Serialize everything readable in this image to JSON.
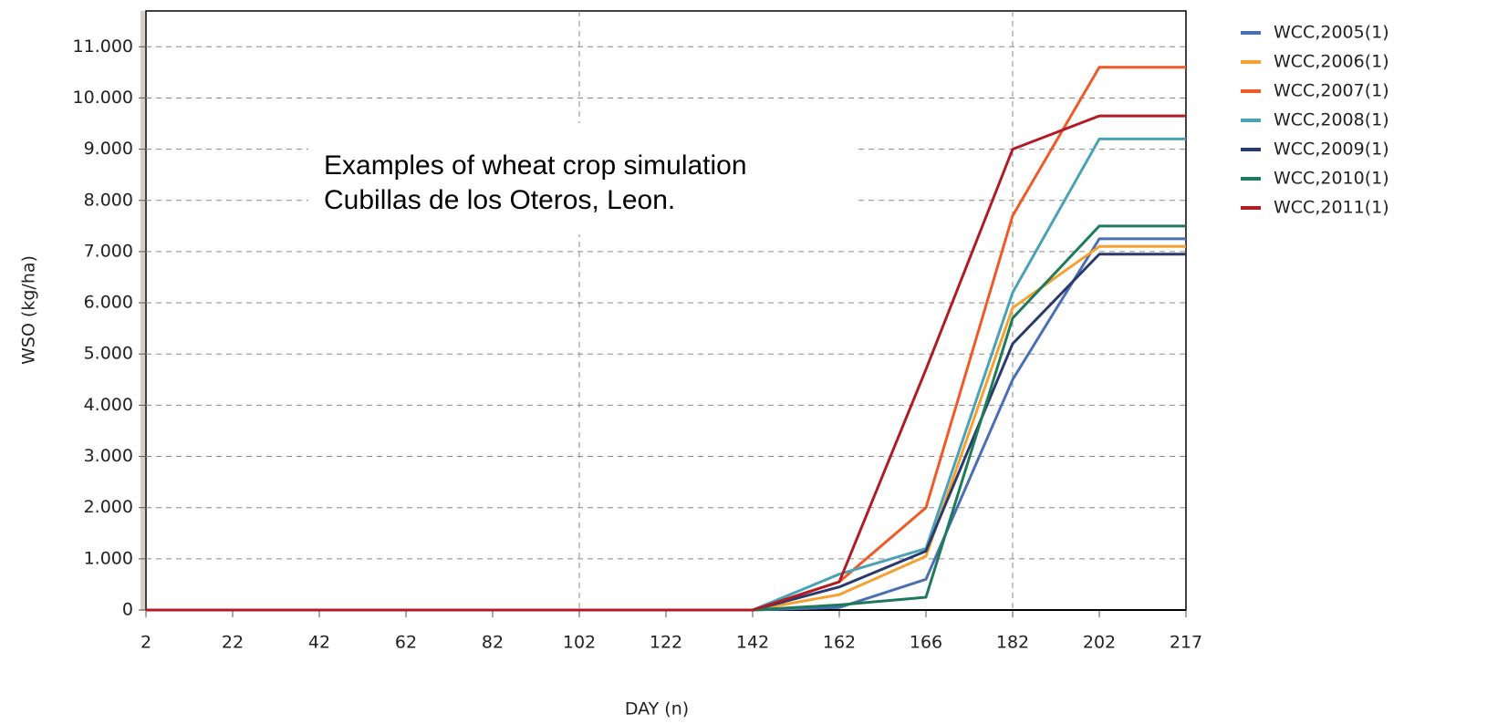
{
  "chart_data": {
    "type": "line",
    "x_label": "DAY (n)",
    "y_label": "WSO (kg/ha)",
    "annotation": [
      "Examples of wheat crop simulation",
      "Cubillas de los Oteros, Leon."
    ],
    "categories": [
      "2",
      "22",
      "42",
      "62",
      "82",
      "102",
      "122",
      "142",
      "162",
      "166",
      "182",
      "202",
      "217"
    ],
    "ylim": [
      0,
      11700
    ],
    "yticks": [
      0,
      {
        "value": 1000,
        "label": "1.000"
      },
      {
        "value": 2000,
        "label": "2.000"
      },
      {
        "value": 3000,
        "label": "3.000"
      },
      {
        "value": 4000,
        "label": "4.000"
      },
      {
        "value": 5000,
        "label": "5.000"
      },
      {
        "value": 6000,
        "label": "6.000"
      },
      {
        "value": 7000,
        "label": "7.000"
      },
      {
        "value": 8000,
        "label": "8.000"
      },
      {
        "value": 9000,
        "label": "9.000"
      },
      {
        "value": 10000,
        "label": "10.000"
      },
      {
        "value": 11000,
        "label": "11.000"
      }
    ],
    "grid": true,
    "legend": "upper right",
    "series": [
      {
        "name": "WCC,2005(1)",
        "color": "#4a6fb5",
        "values": [
          0,
          0,
          0,
          0,
          0,
          0,
          0,
          0,
          50,
          600,
          4500,
          7250,
          7250
        ]
      },
      {
        "name": "WCC,2006(1)",
        "color": "#f5a030",
        "values": [
          0,
          0,
          0,
          0,
          0,
          0,
          0,
          0,
          300,
          1050,
          5900,
          7100,
          7100
        ]
      },
      {
        "name": "WCC,2007(1)",
        "color": "#f05a28",
        "values": [
          0,
          0,
          0,
          0,
          0,
          0,
          0,
          0,
          550,
          2000,
          7700,
          10600,
          10600
        ]
      },
      {
        "name": "WCC,2008(1)",
        "color": "#4aa3b5",
        "values": [
          0,
          0,
          0,
          0,
          0,
          0,
          0,
          0,
          700,
          1200,
          6200,
          9200,
          9200
        ]
      },
      {
        "name": "WCC,2009(1)",
        "color": "#2b3a6e",
        "values": [
          0,
          0,
          0,
          0,
          0,
          0,
          0,
          0,
          450,
          1150,
          5200,
          6950,
          6950
        ]
      },
      {
        "name": "WCC,2010(1)",
        "color": "#1f7a5a",
        "values": [
          0,
          0,
          0,
          0,
          0,
          0,
          0,
          0,
          100,
          250,
          5700,
          7500,
          7500
        ]
      },
      {
        "name": "WCC,2011(1)",
        "color": "#b01c24",
        "values": [
          0,
          0,
          0,
          0,
          0,
          0,
          0,
          0,
          550,
          4700,
          9000,
          9650,
          9650
        ]
      }
    ]
  }
}
